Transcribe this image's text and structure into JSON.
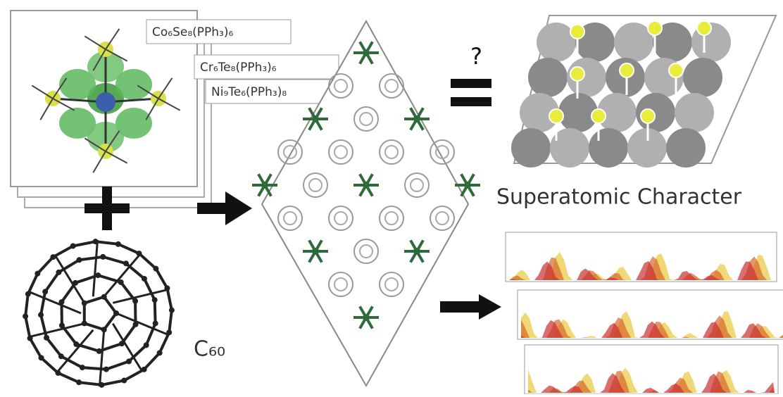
{
  "labels": {
    "cluster_1": "Co₆Se₈(PPh₃)₆",
    "cluster_2": "Cr₆Te₈(PPh₃)₆",
    "cluster_3": "Ni₉Te₆(PPh₃)₈",
    "question": "?",
    "fullerene": "C₆₀",
    "caption": "Superatomic Character"
  }
}
